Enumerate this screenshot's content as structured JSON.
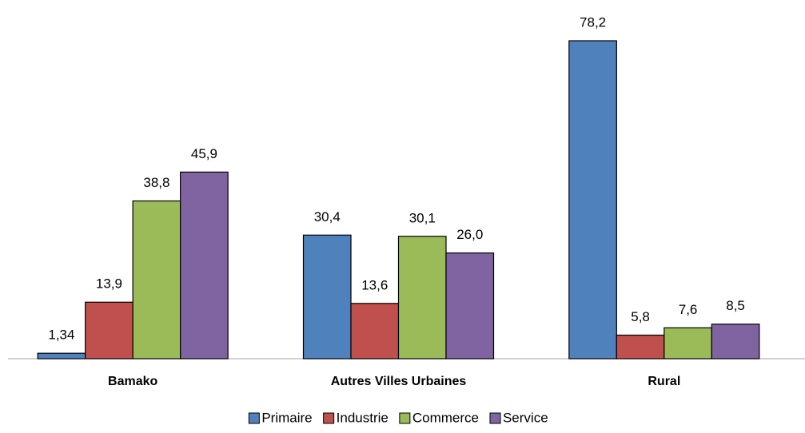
{
  "chart_data": {
    "type": "bar",
    "categories": [
      "Bamako",
      "Autres Villes Urbaines",
      "Rural"
    ],
    "series": [
      {
        "name": "Primaire",
        "color": "#4f81bd",
        "values": [
          1.34,
          30.4,
          78.2
        ],
        "value_labels": [
          "1,34",
          "30,4",
          "78,2"
        ]
      },
      {
        "name": "Industrie",
        "color": "#c0504d",
        "values": [
          13.9,
          13.6,
          5.8
        ],
        "value_labels": [
          "13,9",
          "13,6",
          "5,8"
        ]
      },
      {
        "name": "Commerce",
        "color": "#9bbb59",
        "values": [
          38.8,
          30.1,
          7.6
        ],
        "value_labels": [
          "38,8",
          "30,1",
          "7,6"
        ]
      },
      {
        "name": "Service",
        "color": "#8064a2",
        "values": [
          45.9,
          26.0,
          8.5
        ],
        "value_labels": [
          "45,9",
          "26,0",
          "8,5"
        ]
      }
    ]
  }
}
